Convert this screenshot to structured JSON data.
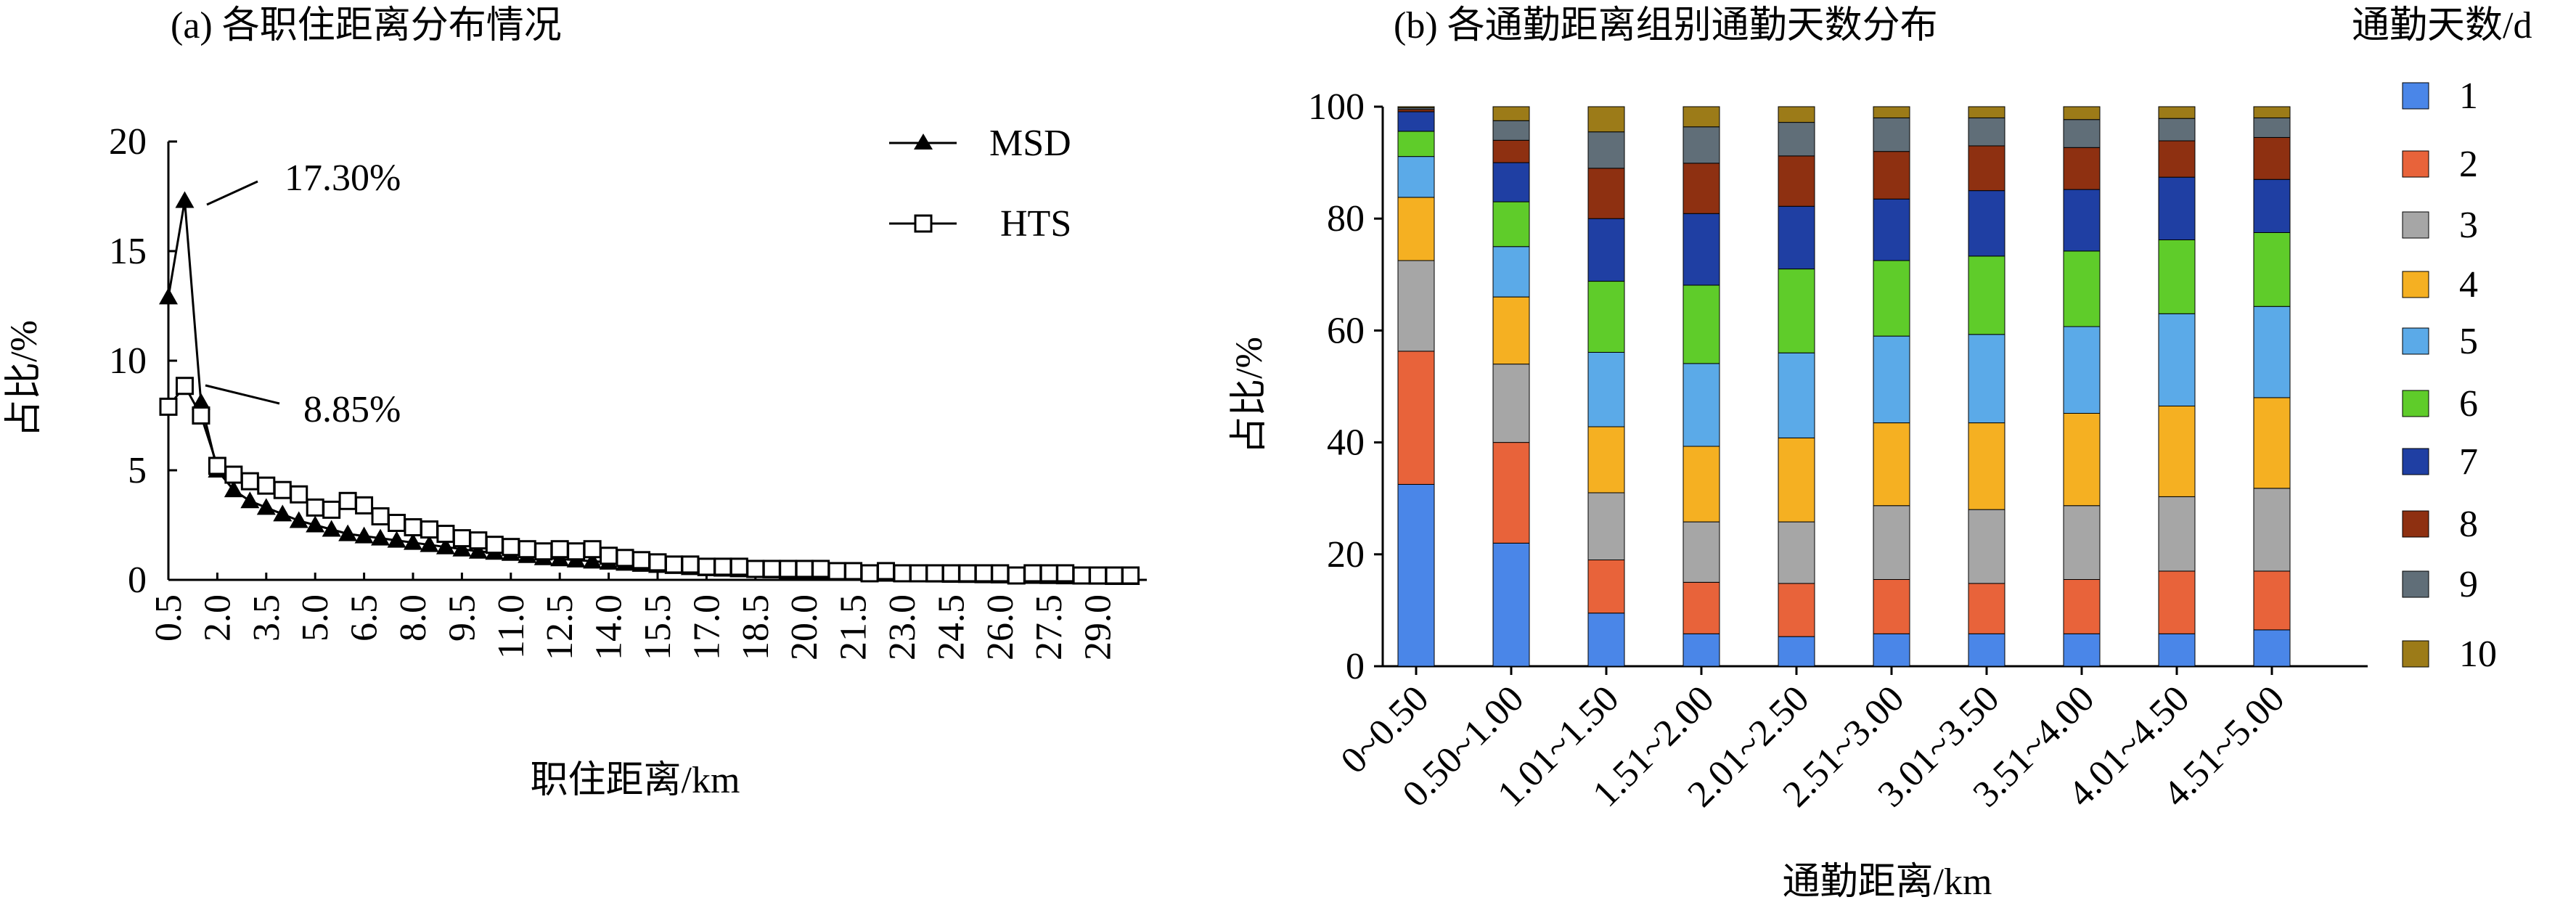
{
  "chart_data": [
    {
      "type": "line",
      "title": "(a) 各职住距离分布情况",
      "xlabel": "职住距离/km",
      "ylabel": "占比/%",
      "xlim": [
        0.5,
        30.5
      ],
      "ylim": [
        0,
        20
      ],
      "y_ticks": [
        0,
        5,
        10,
        15,
        20
      ],
      "x_ticks": [
        "0.5",
        "2.0",
        "3.5",
        "5.0",
        "6.5",
        "8.0",
        "9.5",
        "11.0",
        "12.5",
        "14.0",
        "15.5",
        "17.0",
        "18.5",
        "20.0",
        "21.5",
        "23.0",
        "24.5",
        "26.0",
        "27.5",
        "29.0"
      ],
      "legend_position": "top-right",
      "grid": false,
      "annotations": [
        {
          "text": "17.30%",
          "x": 1.0,
          "y": 17.3
        },
        {
          "text": "8.85%",
          "x": 1.0,
          "y": 8.85
        }
      ],
      "series": [
        {
          "name": "MSD",
          "marker": "filled-triangle",
          "x": [
            0.5,
            1.0,
            1.5,
            2.0,
            2.5,
            3.0,
            3.5,
            4.0,
            4.5,
            5.0,
            5.5,
            6.0,
            6.5,
            7.0,
            7.5,
            8.0,
            8.5,
            9.0,
            9.5,
            10.0,
            10.5,
            11.0,
            11.5,
            12.0,
            12.5,
            13.0,
            13.5,
            14.0,
            14.5,
            15.0,
            15.5,
            16.0,
            16.5,
            17.0,
            17.5,
            18.0,
            18.5,
            19.0,
            19.5,
            20.0,
            20.5,
            21.0,
            21.5,
            22.0,
            22.5,
            23.0,
            23.5,
            24.0,
            24.5,
            25.0,
            25.5,
            26.0,
            26.5,
            27.0,
            27.5,
            28.0,
            28.5,
            29.0,
            29.5,
            30.0
          ],
          "y": [
            12.9,
            17.3,
            8.1,
            5.0,
            4.1,
            3.6,
            3.3,
            3.0,
            2.7,
            2.5,
            2.3,
            2.1,
            2.0,
            1.9,
            1.8,
            1.7,
            1.6,
            1.5,
            1.4,
            1.3,
            1.25,
            1.2,
            1.1,
            1.0,
            0.95,
            0.9,
            0.85,
            0.8,
            0.75,
            0.7,
            0.65,
            0.6,
            0.55,
            0.5,
            0.48,
            0.45,
            0.42,
            0.4,
            0.38,
            0.35,
            0.33,
            0.3,
            0.28,
            0.27,
            0.25,
            0.24,
            0.22,
            0.21,
            0.2,
            0.19,
            0.18,
            0.17,
            0.16,
            0.15,
            0.14,
            0.13,
            0.12,
            0.11,
            0.1,
            0.1
          ]
        },
        {
          "name": "HTS",
          "marker": "open-square",
          "x": [
            0.5,
            1.0,
            1.5,
            2.0,
            2.5,
            3.0,
            3.5,
            4.0,
            4.5,
            5.0,
            5.5,
            6.0,
            6.5,
            7.0,
            7.5,
            8.0,
            8.5,
            9.0,
            9.5,
            10.0,
            10.5,
            11.0,
            11.5,
            12.0,
            12.5,
            13.0,
            13.5,
            14.0,
            14.5,
            15.0,
            15.5,
            16.0,
            16.5,
            17.0,
            17.5,
            18.0,
            18.5,
            19.0,
            19.5,
            20.0,
            20.5,
            21.0,
            21.5,
            22.0,
            22.5,
            23.0,
            23.5,
            24.0,
            24.5,
            25.0,
            25.5,
            26.0,
            26.5,
            27.0,
            27.5,
            28.0,
            28.5,
            29.0,
            29.5,
            30.0
          ],
          "y": [
            7.9,
            8.85,
            7.5,
            5.2,
            4.8,
            4.5,
            4.3,
            4.1,
            3.9,
            3.3,
            3.2,
            3.6,
            3.4,
            2.9,
            2.6,
            2.4,
            2.3,
            2.1,
            1.9,
            1.8,
            1.6,
            1.5,
            1.4,
            1.3,
            1.4,
            1.3,
            1.4,
            1.1,
            1.0,
            0.9,
            0.8,
            0.7,
            0.7,
            0.6,
            0.6,
            0.6,
            0.5,
            0.5,
            0.5,
            0.5,
            0.5,
            0.4,
            0.4,
            0.3,
            0.4,
            0.3,
            0.3,
            0.3,
            0.3,
            0.3,
            0.3,
            0.3,
            0.2,
            0.3,
            0.3,
            0.3,
            0.2,
            0.2,
            0.2,
            0.2
          ]
        }
      ]
    },
    {
      "type": "bar",
      "stacked": true,
      "title": "(b) 各通勤距离组别通勤天数分布",
      "xlabel": "通勤距离/km",
      "ylabel": "占比/%",
      "ylim": [
        0,
        100
      ],
      "y_ticks": [
        0,
        20,
        40,
        60,
        80,
        100
      ],
      "legend_title": "通勤天数/d",
      "legend_position": "right",
      "grid": false,
      "categories": [
        "0~0.50",
        "0.50~1.00",
        "1.01~1.50",
        "1.51~2.00",
        "2.01~2.50",
        "2.51~3.00",
        "3.01~3.50",
        "3.51~4.00",
        "4.01~4.50",
        "4.51~5.00"
      ],
      "series": [
        {
          "name": "1",
          "color": "#4a86e8",
          "values": [
            32.5,
            22.0,
            9.5,
            5.8,
            5.3,
            5.8,
            5.8,
            5.8,
            5.8,
            6.5
          ]
        },
        {
          "name": "2",
          "color": "#e8633a",
          "values": [
            23.8,
            18.0,
            9.5,
            9.2,
            9.5,
            9.7,
            9.0,
            9.7,
            11.2,
            10.5
          ]
        },
        {
          "name": "3",
          "color": "#a6a6a6",
          "values": [
            16.2,
            14.0,
            12.0,
            10.8,
            11.0,
            13.2,
            13.2,
            13.2,
            13.3,
            14.8
          ]
        },
        {
          "name": "4",
          "color": "#f5b022",
          "values": [
            11.3,
            12.0,
            11.8,
            13.5,
            15.0,
            14.8,
            15.5,
            16.5,
            16.2,
            16.2
          ]
        },
        {
          "name": "5",
          "color": "#5baae8",
          "values": [
            7.3,
            9.0,
            13.3,
            14.8,
            15.2,
            15.5,
            15.8,
            15.5,
            16.5,
            16.3
          ]
        },
        {
          "name": "6",
          "color": "#5fcc2a",
          "values": [
            4.5,
            8.0,
            12.7,
            14.0,
            15.0,
            13.5,
            14.0,
            13.5,
            13.2,
            13.2
          ]
        },
        {
          "name": "7",
          "color": "#1f3fa3",
          "values": [
            3.5,
            7.0,
            11.2,
            12.8,
            11.2,
            11.0,
            11.7,
            11.0,
            11.2,
            9.5
          ]
        },
        {
          "name": "8",
          "color": "#8e3011",
          "values": [
            0.4,
            4.0,
            9.0,
            9.0,
            9.0,
            8.5,
            8.0,
            7.5,
            6.5,
            7.5
          ]
        },
        {
          "name": "9",
          "color": "#606e78",
          "values": [
            0.3,
            3.5,
            6.5,
            6.5,
            6.0,
            6.0,
            5.0,
            5.0,
            4.0,
            3.5
          ]
        },
        {
          "name": "10",
          "color": "#9c7b18",
          "values": [
            0.2,
            2.5,
            4.5,
            3.6,
            2.8,
            2.0,
            2.0,
            2.3,
            2.1,
            2.0
          ]
        }
      ]
    }
  ]
}
